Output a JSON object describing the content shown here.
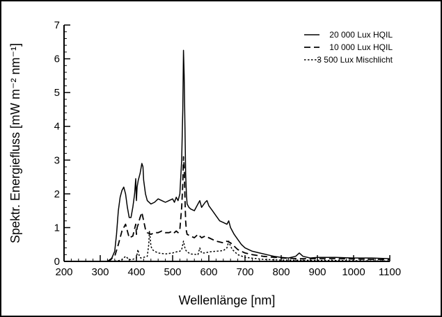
{
  "chart_data": {
    "type": "line",
    "title": "",
    "xlabel": "Wellenlänge [nm]",
    "ylabel": "Spektr. Energiefluss [mW m⁻² nm⁻¹]",
    "xlim": [
      200,
      1100
    ],
    "ylim": [
      0,
      7
    ],
    "x_ticks": [
      200,
      300,
      400,
      500,
      600,
      700,
      800,
      900,
      1000,
      1100
    ],
    "y_ticks": [
      0,
      1,
      2,
      3,
      4,
      5,
      6,
      7
    ],
    "grid": false,
    "legend_position": "top-right",
    "series": [
      {
        "name": "20 000 Lux HQIL",
        "dash": "solid",
        "x": [
          300,
          320,
          330,
          340,
          345,
          350,
          355,
          360,
          365,
          370,
          375,
          380,
          385,
          390,
          395,
          398,
          400,
          402,
          405,
          410,
          415,
          418,
          420,
          425,
          430,
          440,
          450,
          460,
          470,
          480,
          490,
          500,
          505,
          510,
          515,
          520,
          525,
          528,
          530,
          532,
          534,
          536,
          538,
          540,
          545,
          550,
          560,
          570,
          575,
          580,
          590,
          595,
          600,
          610,
          620,
          630,
          640,
          650,
          655,
          660,
          670,
          680,
          690,
          700,
          720,
          740,
          760,
          780,
          800,
          820,
          840,
          850,
          860,
          880,
          900,
          950,
          1000,
          1050,
          1100
        ],
        "y": [
          0,
          0,
          0.05,
          0.3,
          0.8,
          1.5,
          1.9,
          2.1,
          2.2,
          2.0,
          1.6,
          1.3,
          1.3,
          1.6,
          2.0,
          2.45,
          1.8,
          2.2,
          2.4,
          2.6,
          2.9,
          2.8,
          2.4,
          2.0,
          1.8,
          1.7,
          1.75,
          1.85,
          1.8,
          1.75,
          1.8,
          1.85,
          1.75,
          1.9,
          1.8,
          2.0,
          3.0,
          4.5,
          6.25,
          5.5,
          4.0,
          2.6,
          2.0,
          1.7,
          1.6,
          1.55,
          1.5,
          1.7,
          1.8,
          1.6,
          1.75,
          1.8,
          1.65,
          1.5,
          1.35,
          1.2,
          1.15,
          1.1,
          1.2,
          1.0,
          0.8,
          0.65,
          0.5,
          0.4,
          0.3,
          0.25,
          0.2,
          0.15,
          0.12,
          0.1,
          0.15,
          0.25,
          0.15,
          0.1,
          0.12,
          0.12,
          0.1,
          0.1,
          0.08
        ]
      },
      {
        "name": "10 000 Lux HQIL",
        "dash": "dashed",
        "x": [
          320,
          340,
          350,
          360,
          365,
          370,
          375,
          380,
          390,
          398,
          400,
          402,
          405,
          410,
          415,
          420,
          425,
          430,
          440,
          450,
          460,
          470,
          480,
          490,
          500,
          505,
          510,
          515,
          520,
          525,
          528,
          530,
          532,
          534,
          536,
          538,
          540,
          550,
          560,
          570,
          580,
          590,
          600,
          620,
          640,
          650,
          660,
          670,
          680,
          700,
          720,
          750,
          800,
          850,
          900,
          950,
          1000,
          1050,
          1100
        ],
        "y": [
          0,
          0.15,
          0.5,
          0.9,
          1.0,
          1.1,
          0.9,
          0.7,
          0.75,
          1.1,
          0.8,
          1.0,
          1.1,
          1.3,
          1.45,
          1.2,
          0.95,
          0.85,
          0.8,
          0.85,
          0.85,
          0.9,
          0.85,
          0.85,
          0.9,
          0.85,
          0.9,
          0.85,
          0.95,
          1.6,
          2.3,
          3.1,
          2.8,
          1.9,
          1.2,
          0.9,
          0.8,
          0.75,
          0.7,
          0.8,
          0.7,
          0.75,
          0.7,
          0.6,
          0.55,
          0.6,
          0.55,
          0.45,
          0.35,
          0.25,
          0.2,
          0.15,
          0.1,
          0.08,
          0.08,
          0.08,
          0.07,
          0.06,
          0.05
        ]
      },
      {
        "name": "3 500 Lux Mischlicht",
        "dash": "dotted",
        "x": [
          330,
          350,
          360,
          365,
          370,
          375,
          380,
          390,
          400,
          404,
          408,
          412,
          420,
          430,
          434,
          436,
          438,
          440,
          444,
          450,
          460,
          480,
          500,
          510,
          520,
          525,
          530,
          535,
          540,
          545,
          550,
          570,
          575,
          580,
          590,
          600,
          620,
          640,
          650,
          655,
          660,
          665,
          670,
          680,
          700,
          750,
          800,
          900,
          1000,
          1100
        ],
        "y": [
          0,
          0.02,
          0.05,
          0.1,
          0.15,
          0.1,
          0.05,
          0.06,
          0.1,
          0.35,
          0.15,
          0.1,
          0.12,
          0.15,
          0.5,
          0.9,
          0.7,
          0.45,
          0.35,
          0.3,
          0.25,
          0.22,
          0.25,
          0.28,
          0.3,
          0.35,
          0.6,
          0.35,
          0.28,
          0.25,
          0.22,
          0.2,
          0.4,
          0.25,
          0.25,
          0.28,
          0.3,
          0.32,
          0.4,
          0.6,
          0.45,
          0.35,
          0.3,
          0.2,
          0.12,
          0.06,
          0.04,
          0.03,
          0.02,
          0.01
        ]
      }
    ]
  }
}
